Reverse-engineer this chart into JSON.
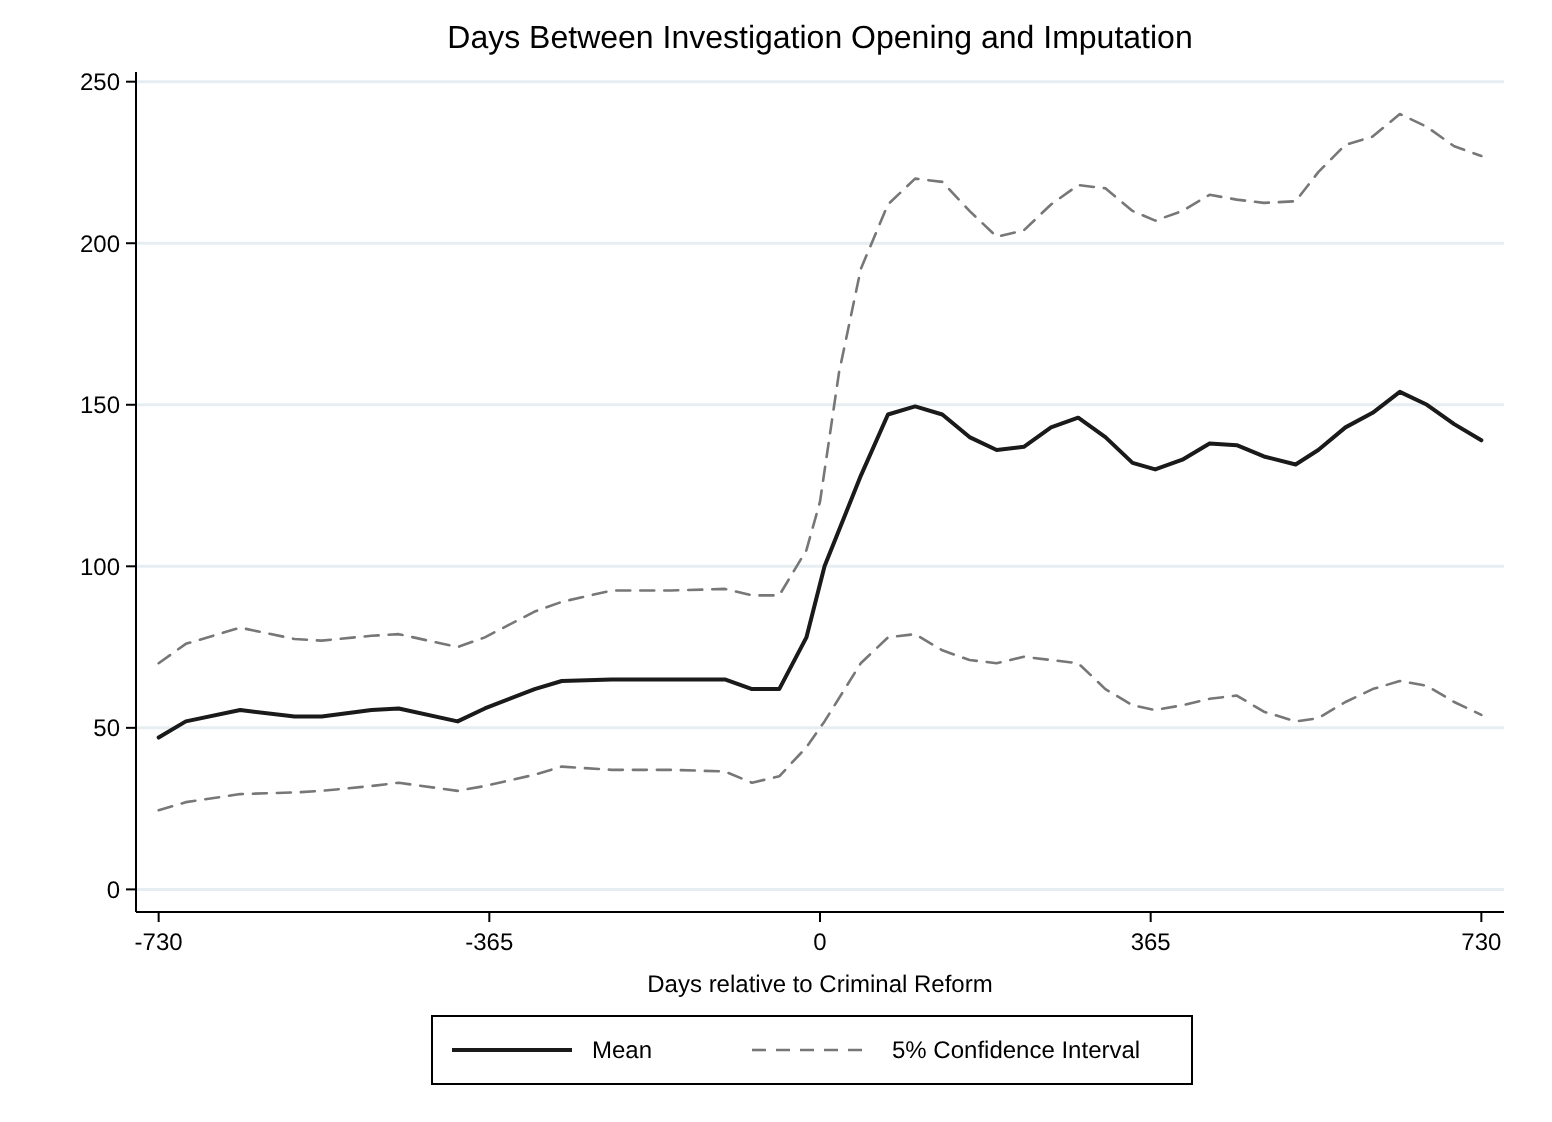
{
  "chart_data": {
    "type": "line",
    "title": "Days Between Investigation Opening and Imputation",
    "xlabel": "Days relative to Criminal Reform",
    "xlim": [
      -755,
      755
    ],
    "xticks": [
      -730,
      -365,
      0,
      365,
      730
    ],
    "ylim": [
      -7,
      253
    ],
    "yticks": [
      0,
      50,
      100,
      150,
      200,
      250
    ],
    "grid": "y",
    "legend": "bottom",
    "marker": "none",
    "series": [
      {
        "name": "Mean",
        "color": "#1a1a1a",
        "line_style": "solid",
        "x": [
          -730,
          -700,
          -640,
          -580,
          -550,
          -495,
          -465,
          -400,
          -370,
          -315,
          -285,
          -230,
          -165,
          -105,
          -75,
          -45,
          -15,
          5,
          45,
          75,
          105,
          135,
          165,
          195,
          225,
          255,
          285,
          315,
          345,
          370,
          400,
          430,
          460,
          490,
          525,
          550,
          580,
          610,
          640,
          670,
          700,
          730
        ],
        "values": [
          47,
          52,
          55.5,
          53.5,
          53.5,
          55.5,
          56,
          52,
          56,
          62,
          64.5,
          65,
          65,
          65,
          62,
          62,
          78,
          100,
          128,
          147,
          149.5,
          147,
          140,
          136,
          137,
          143,
          146,
          140,
          132,
          130,
          133,
          138,
          137.5,
          134,
          131.5,
          136,
          143,
          147.5,
          154,
          150,
          144,
          139
        ]
      },
      {
        "name": "5% Confidence Interval",
        "color": "#777777",
        "line_style": "dashed",
        "x": [
          -730,
          -700,
          -640,
          -580,
          -550,
          -495,
          -465,
          -400,
          -370,
          -315,
          -285,
          -230,
          -165,
          -105,
          -75,
          -45,
          -15,
          0,
          21,
          45,
          75,
          105,
          135,
          165,
          195,
          225,
          255,
          285,
          315,
          345,
          370,
          400,
          430,
          460,
          490,
          525,
          550,
          580,
          610,
          640,
          670,
          700,
          730
        ],
        "values": [
          70,
          76,
          81,
          77.5,
          77,
          78.5,
          79,
          75,
          78,
          86,
          89,
          92.5,
          92.5,
          93,
          91,
          91,
          105,
          120,
          160,
          192,
          212,
          220,
          219,
          210,
          202,
          204,
          212,
          218,
          217,
          210,
          207,
          210,
          215,
          213.5,
          212.5,
          213,
          222,
          230.5,
          233,
          240,
          236,
          230,
          227
        ]
      },
      {
        "color": "#777777",
        "line_style": "dashed",
        "x": [
          -730,
          -700,
          -640,
          -580,
          -550,
          -495,
          -465,
          -400,
          -370,
          -315,
          -285,
          -230,
          -165,
          -105,
          -75,
          -45,
          -15,
          5,
          45,
          75,
          105,
          135,
          165,
          195,
          225,
          255,
          285,
          315,
          345,
          370,
          400,
          430,
          460,
          490,
          525,
          550,
          580,
          610,
          640,
          670,
          700,
          730
        ],
        "values": [
          24.5,
          27,
          29.5,
          30,
          30.5,
          32,
          33,
          30.5,
          32,
          35.5,
          38,
          37,
          37,
          36.5,
          33,
          35,
          44,
          52,
          70,
          78,
          79,
          74,
          71,
          70,
          72,
          71,
          70,
          62,
          57,
          55.5,
          57,
          59,
          60,
          55,
          52,
          53,
          58,
          62,
          64.5,
          63,
          58,
          54
        ]
      }
    ]
  }
}
